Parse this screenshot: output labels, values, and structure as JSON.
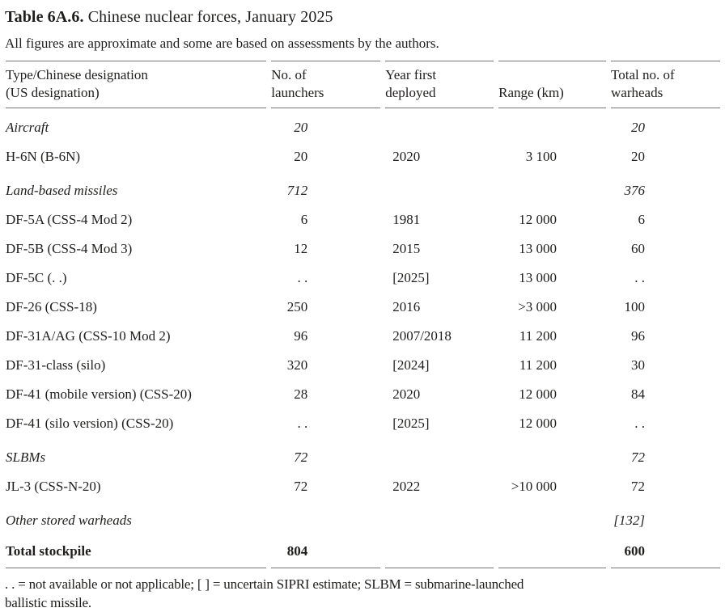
{
  "title": {
    "number": "Table 6A.6.",
    "caption": "Chinese nuclear forces, January 2025"
  },
  "subtitle": "All figures are approximate and some are based on assessments by the authors.",
  "table": {
    "header": {
      "type": [
        "Type/Chinese designation",
        "(US designation)"
      ],
      "launchers": [
        "No. of",
        "launchers"
      ],
      "year": [
        "Year first",
        "deployed"
      ],
      "range": [
        "Range (km)"
      ],
      "warheads": [
        "Total no. of",
        "warheads"
      ]
    },
    "rows": [
      {
        "style": "section",
        "type": "Aircraft",
        "launchers": "20",
        "year": "",
        "range": "",
        "warheads": "20"
      },
      {
        "style": "item",
        "type": "H-6N (B-6N)",
        "launchers": "20",
        "year": "2020",
        "range": "3 100",
        "warheads": "20"
      },
      {
        "style": "section",
        "type": "Land-based missiles",
        "launchers": "712",
        "year": "",
        "range": "",
        "warheads": "376"
      },
      {
        "style": "item",
        "type": "DF-5A (CSS-4 Mod 2)",
        "launchers": "6",
        "year": "1981",
        "range": "12 000",
        "warheads": "6"
      },
      {
        "style": "item",
        "type": "DF-5B (CSS-4 Mod 3)",
        "launchers": "12",
        "year": "2015",
        "range": "13 000",
        "warheads": "60"
      },
      {
        "style": "item",
        "type": "DF-5C (. .)",
        "launchers": ". .",
        "year": "[2025]",
        "range": "13 000",
        "warheads": ". ."
      },
      {
        "style": "item",
        "type": "DF-26 (CSS-18)",
        "launchers": "250",
        "year": "2016",
        "range": ">3 000",
        "warheads": "100"
      },
      {
        "style": "item",
        "type": "DF-31A/AG (CSS-10 Mod 2)",
        "launchers": "96",
        "year": "2007/2018",
        "range": "11 200",
        "warheads": "96"
      },
      {
        "style": "item",
        "type": "DF-31-class (silo)",
        "launchers": "320",
        "year": "[2024]",
        "range": "11 200",
        "warheads": "30"
      },
      {
        "style": "item",
        "type": "DF-41 (mobile version) (CSS-20)",
        "launchers": "28",
        "year": "2020",
        "range": "12 000",
        "warheads": "84"
      },
      {
        "style": "item",
        "type": "DF-41 (silo version) (CSS-20)",
        "launchers": ". .",
        "year": "[2025]",
        "range": "12 000",
        "warheads": ". ."
      },
      {
        "style": "section",
        "type": "SLBMs",
        "launchers": "72",
        "year": "",
        "range": "",
        "warheads": "72"
      },
      {
        "style": "item",
        "type": "JL-3 (CSS-N-20)",
        "launchers": "72",
        "year": "2022",
        "range": ">10 000",
        "warheads": "72"
      },
      {
        "style": "section",
        "type": "Other stored warheads",
        "launchers": "",
        "year": "",
        "range": "",
        "warheads": "[132]"
      },
      {
        "style": "total",
        "type": "Total stockpile",
        "launchers": "804",
        "year": "",
        "range": "",
        "warheads": "600"
      }
    ]
  },
  "footnote": {
    "lines": [
      ". . = not available or not applicable; [ ] = uncertain SIPRI estimate; SLBM = submarine-launched",
      "ballistic missile."
    ]
  },
  "colors": {
    "text": "#1f1e1c",
    "rule": "#757575",
    "background": "#ffffff"
  }
}
